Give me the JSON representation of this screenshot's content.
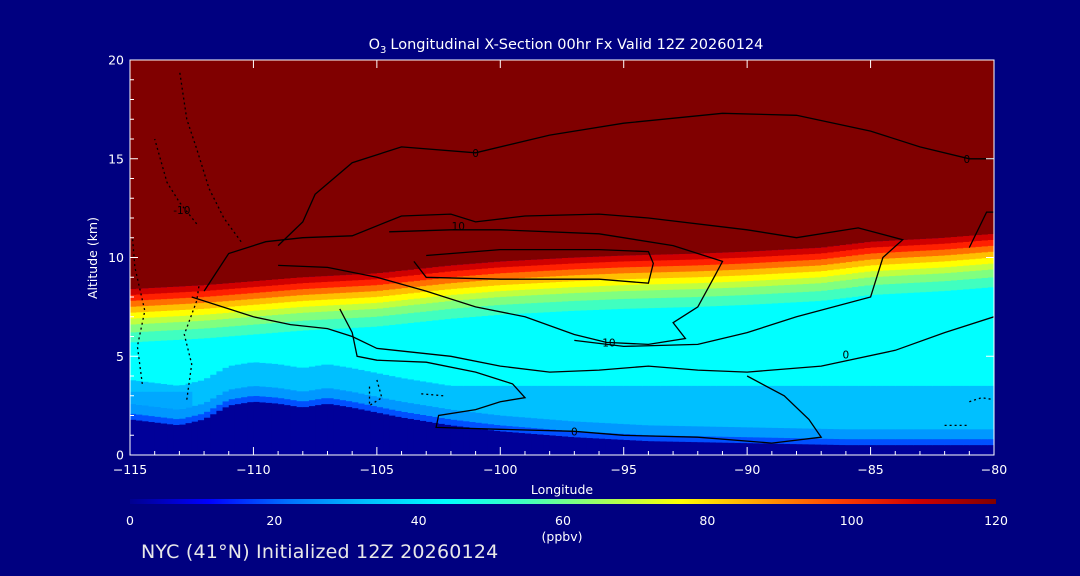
{
  "chart_data": {
    "type": "heatmap",
    "title": "Longitudinal X-Section 00hr  Fx Valid 12Z 20260124",
    "title_prefix": "O",
    "title_subscript": "3",
    "xlabel": "Longitude",
    "ylabel": "Altitude (km)",
    "xlim": [
      -115,
      -80
    ],
    "ylim": [
      0,
      20
    ],
    "x_ticks": [
      -115,
      -110,
      -105,
      -100,
      -95,
      -90,
      -85,
      -80
    ],
    "x_tick_labels": [
      "−115",
      "−110",
      "−105",
      "−100",
      "−95",
      "−90",
      "−85",
      "−80"
    ],
    "y_ticks": [
      0,
      5,
      10,
      15,
      20
    ],
    "y_tick_labels": [
      "0",
      "5",
      "10",
      "15",
      "20"
    ],
    "colorbar": {
      "label": "(ppbv)",
      "min": 0,
      "max": 120,
      "ticks": [
        0,
        20,
        40,
        60,
        80,
        100,
        120
      ],
      "tick_labels": [
        "0",
        "20",
        "40",
        "60",
        "80",
        "100",
        "120"
      ],
      "colormap": [
        "#00008f",
        "#0000ff",
        "#0070ff",
        "#00c0ff",
        "#00ffff",
        "#40ffbf",
        "#a0ff60",
        "#ffff00",
        "#ffa000",
        "#ff4000",
        "#d00000",
        "#800000"
      ]
    },
    "colors": {
      "background": "#000080",
      "ozone_max": "#800000",
      "tropopause_red": "#ff0000",
      "mid_troposphere": "#00ffff",
      "boundary_layer": "#00c0ff",
      "ground": "#000099",
      "contour": "#000000"
    },
    "tropopause_height_km": {
      "x": [
        -115,
        -112,
        -110,
        -108,
        -105,
        -102,
        -100,
        -97,
        -95,
        -92,
        -90,
        -87,
        -85,
        -82,
        -80
      ],
      "values": [
        8.2,
        8.4,
        8.6,
        8.8,
        9.0,
        9.4,
        9.6,
        9.8,
        9.9,
        10.0,
        10.1,
        10.3,
        10.6,
        10.8,
        11.0
      ]
    },
    "terrain_height_km": {
      "x": [
        -115,
        -113,
        -112,
        -111,
        -110,
        -109,
        -108,
        -107,
        -106,
        -104,
        -102,
        -100,
        -97,
        -94,
        -90,
        -86,
        -83,
        -80
      ],
      "values": [
        1.6,
        1.3,
        1.6,
        2.3,
        2.5,
        2.4,
        2.2,
        2.4,
        2.2,
        1.7,
        1.3,
        1.0,
        0.7,
        0.5,
        0.4,
        0.3,
        0.3,
        0.3
      ]
    },
    "contour_labels": [
      {
        "text": "0",
        "x": -101,
        "y": 15.3
      },
      {
        "text": "0",
        "x": -81.1,
        "y": 15.0
      },
      {
        "text": "10",
        "x": -101.7,
        "y": 11.6
      },
      {
        "text": "10",
        "x": -95.6,
        "y": 5.7
      },
      {
        "text": "0",
        "x": -86.0,
        "y": 5.1
      },
      {
        "text": "0",
        "x": -97.0,
        "y": 1.2
      },
      {
        "text": "-10",
        "x": -112.9,
        "y": 12.4
      }
    ]
  },
  "footer": {
    "text": "NYC (41°N) Initialized 12Z 20260124"
  }
}
